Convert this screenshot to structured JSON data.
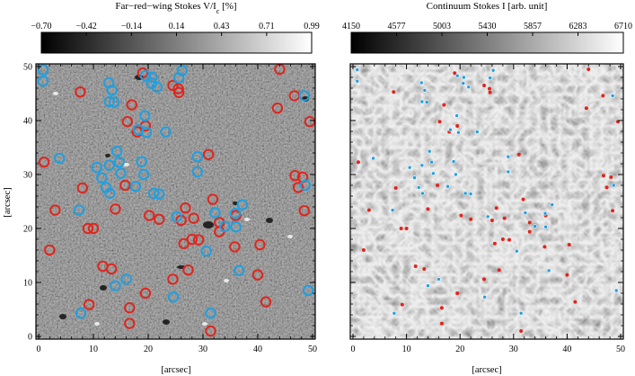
{
  "left_panel": {
    "colorbar": {
      "title_main": "Far−red−wing Stokes V/I",
      "title_sub": "c",
      "title_unit": " [%]",
      "ticks": [
        "−0.70",
        "−0.42",
        "−0.14",
        "0.14",
        "0.43",
        "0.71",
        "0.99"
      ]
    },
    "xlabel": "[arcsec]",
    "ylabel": "[arcsec]",
    "xticks": [
      "0",
      "10",
      "20",
      "30",
      "40",
      "50"
    ],
    "yticks": [
      "0",
      "10",
      "20",
      "30",
      "40",
      "50"
    ]
  },
  "right_panel": {
    "colorbar": {
      "title": "Continuum Stokes I [arb. unit]",
      "ticks": [
        "4150",
        "4577",
        "5003",
        "5430",
        "5857",
        "6283",
        "6710"
      ]
    },
    "xlabel": "[arcsec]",
    "xticks": [
      "0",
      "10",
      "20",
      "30",
      "40",
      "50"
    ],
    "yticks": [
      "0",
      "10",
      "20",
      "30",
      "40",
      "50"
    ]
  },
  "colors": {
    "marker_red": "#e0251c",
    "marker_blue": "#1f9fe0"
  },
  "markers": {
    "red": [
      [
        1,
        32.3
      ],
      [
        2,
        16
      ],
      [
        3,
        23.4
      ],
      [
        9,
        20
      ],
      [
        10,
        20
      ],
      [
        8,
        27.5
      ],
      [
        7.6,
        45.3
      ],
      [
        9.2,
        5.9
      ],
      [
        11.7,
        13
      ],
      [
        13.3,
        12.5
      ],
      [
        14,
        23.6
      ],
      [
        15.8,
        28
      ],
      [
        16.2,
        39.8
      ],
      [
        16.6,
        5.3
      ],
      [
        16.6,
        2.4
      ],
      [
        17,
        42.9
      ],
      [
        18,
        37.9
      ],
      [
        19,
        48.8
      ],
      [
        19.5,
        8
      ],
      [
        19.5,
        39
      ],
      [
        20.2,
        22.4
      ],
      [
        22,
        21.7
      ],
      [
        24.5,
        46.5
      ],
      [
        25.5,
        45.9
      ],
      [
        25.6,
        45.2
      ],
      [
        24.5,
        10.6
      ],
      [
        26,
        21.5
      ],
      [
        26.5,
        17.2
      ],
      [
        26.8,
        23.8
      ],
      [
        27.3,
        12.3
      ],
      [
        28.3,
        21.9
      ],
      [
        28,
        18
      ],
      [
        29.2,
        17.9
      ],
      [
        31,
        33.7
      ],
      [
        31.4,
        1
      ],
      [
        31.8,
        25.4
      ],
      [
        33,
        21.1
      ],
      [
        33,
        19.4
      ],
      [
        35.8,
        16.6
      ],
      [
        36,
        22.4
      ],
      [
        40,
        11.4
      ],
      [
        40.4,
        17
      ],
      [
        41.5,
        6.4
      ],
      [
        43.6,
        42.3
      ],
      [
        44,
        49.5
      ],
      [
        46.7,
        44.6
      ],
      [
        46.8,
        29.8
      ],
      [
        47.4,
        27.6
      ],
      [
        48.2,
        29.5
      ],
      [
        48.5,
        23.3
      ],
      [
        49.5,
        39.8
      ]
    ],
    "blue": [
      [
        0.8,
        49.4
      ],
      [
        0.8,
        47.3
      ],
      [
        3.8,
        33
      ],
      [
        7.4,
        23.4
      ],
      [
        7.7,
        4.3
      ],
      [
        10.6,
        31.3
      ],
      [
        11.5,
        29.4
      ],
      [
        12.3,
        27.6
      ],
      [
        12.8,
        47
      ],
      [
        12.9,
        43.5
      ],
      [
        12.9,
        31.7
      ],
      [
        13,
        26.5
      ],
      [
        13.4,
        45.6
      ],
      [
        13.8,
        43.4
      ],
      [
        14,
        9.4
      ],
      [
        14.3,
        34.3
      ],
      [
        14.7,
        32.3
      ],
      [
        15,
        30.2
      ],
      [
        16,
        10.6
      ],
      [
        17.7,
        27.8
      ],
      [
        18.2,
        38.3
      ],
      [
        18.8,
        32.4
      ],
      [
        19.2,
        30
      ],
      [
        19.4,
        40.9
      ],
      [
        19.5,
        48.3
      ],
      [
        19.7,
        37.8
      ],
      [
        20.6,
        46.9
      ],
      [
        20.7,
        48
      ],
      [
        21,
        26.5
      ],
      [
        21.6,
        46.2
      ],
      [
        22,
        26.4
      ],
      [
        23.2,
        37.9
      ],
      [
        24.6,
        7.3
      ],
      [
        25.2,
        22.2
      ],
      [
        25.6,
        47.9
      ],
      [
        26.2,
        49.3
      ],
      [
        29,
        33.3
      ],
      [
        29,
        30.5
      ],
      [
        30.6,
        15.8
      ],
      [
        31.4,
        4.3
      ],
      [
        32.2,
        22.9
      ],
      [
        34,
        20.4
      ],
      [
        35.9,
        22.8
      ],
      [
        36,
        20.3
      ],
      [
        36.6,
        12.2
      ],
      [
        37.2,
        24.4
      ],
      [
        48.5,
        44.6
      ],
      [
        48.7,
        28
      ],
      [
        49.2,
        8.5
      ]
    ]
  }
}
